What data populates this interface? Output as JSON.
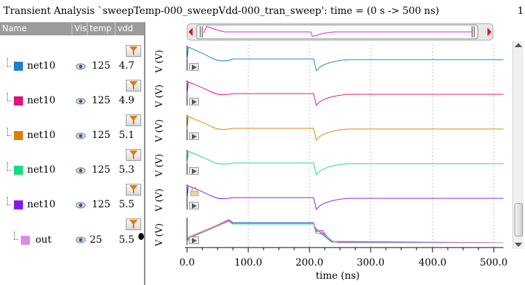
{
  "title": {
    "text": "Transient Analysis `sweepTemp-000_sweepVdd-000_tran_sweep': time = (0 s -> 500 ns)",
    "index": "1"
  },
  "list": {
    "headers": {
      "name": "Name",
      "vis": "Vis",
      "temp": "temp",
      "vdd": "vdd"
    },
    "rows": [
      {
        "name": "net10",
        "color": "#1a7fd0",
        "temp": "125",
        "vdd": "4.7"
      },
      {
        "name": "net10",
        "color": "#e0107f",
        "temp": "125",
        "vdd": "4.9"
      },
      {
        "name": "net10",
        "color": "#e08000",
        "temp": "125",
        "vdd": "5.1"
      },
      {
        "name": "net10",
        "color": "#18d880",
        "temp": "125",
        "vdd": "5.3"
      },
      {
        "name": "net10",
        "color": "#8818e8",
        "temp": "125",
        "vdd": "5.5"
      },
      {
        "name": "out",
        "color": "#e088e8",
        "temp": "25",
        "vdd": "5.5"
      }
    ]
  },
  "plot": {
    "strip_ylabel": "V (V)",
    "x_ticks": [
      "0.0",
      "100.0",
      "200.0",
      "300.0",
      "400.0",
      "500.0"
    ],
    "x_label": "time (ns)"
  },
  "icons": {
    "visibility": "eye-icon",
    "filter": "funnel-filter-icon",
    "strip_menu": "play-triangle-icon",
    "lock": "lock-icon",
    "scroll_left": "red-arrow-left-icon",
    "scroll_right": "red-arrow-right-icon"
  }
}
